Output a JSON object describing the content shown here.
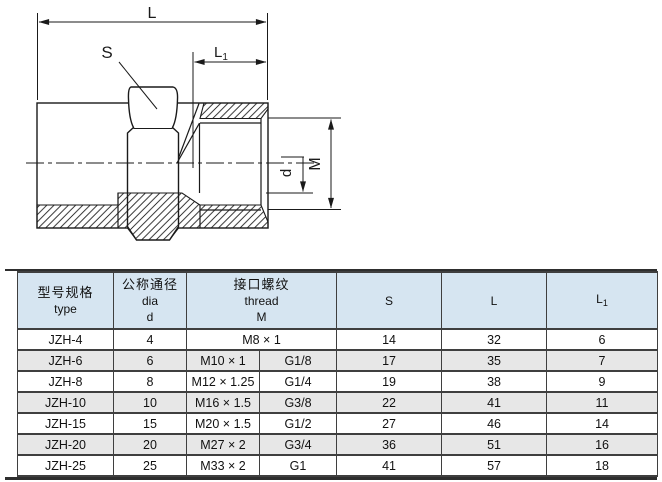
{
  "drawing": {
    "dim_L": "L",
    "dim_S": "S",
    "dim_L1_main": "L",
    "dim_L1_sub": "1",
    "dim_d": "d",
    "dim_M": "M"
  },
  "table": {
    "header": {
      "type_zh": "型号规格",
      "type_en": "type",
      "dia_zh": "公称通径",
      "dia_en": "dia",
      "dia_sym": "d",
      "thread_zh": "接口螺纹",
      "thread_en": "thread",
      "thread_sym": "M",
      "s": "S",
      "l": "L",
      "l1_main": "L",
      "l1_sub": "1"
    },
    "rows": [
      {
        "type": "JZH-4",
        "dia": "4",
        "thread_m": "M8 × 1",
        "thread_g": null,
        "s": "14",
        "l": "32",
        "l1": "6",
        "shaded": false
      },
      {
        "type": "JZH-6",
        "dia": "6",
        "thread_m": "M10 × 1",
        "thread_g": "G1/8",
        "s": "17",
        "l": "35",
        "l1": "7",
        "shaded": true
      },
      {
        "type": "JZH-8",
        "dia": "8",
        "thread_m": "M12 × 1.25",
        "thread_g": "G1/4",
        "s": "19",
        "l": "38",
        "l1": "9",
        "shaded": false
      },
      {
        "type": "JZH-10",
        "dia": "10",
        "thread_m": "M16 × 1.5",
        "thread_g": "G3/8",
        "s": "22",
        "l": "41",
        "l1": "11",
        "shaded": true
      },
      {
        "type": "JZH-15",
        "dia": "15",
        "thread_m": "M20 × 1.5",
        "thread_g": "G1/2",
        "s": "27",
        "l": "46",
        "l1": "14",
        "shaded": false
      },
      {
        "type": "JZH-20",
        "dia": "20",
        "thread_m": "M27 × 2",
        "thread_g": "G3/4",
        "s": "36",
        "l": "51",
        "l1": "16",
        "shaded": true
      },
      {
        "type": "JZH-25",
        "dia": "25",
        "thread_m": "M33 × 2",
        "thread_g": "G1",
        "s": "41",
        "l": "57",
        "l1": "18",
        "shaded": false
      }
    ]
  },
  "colors": {
    "header_bg": "#d6e5f1",
    "row_shade": "#e7e7e7",
    "grid": "#3f3f3f",
    "line": "#1a1a1a"
  }
}
